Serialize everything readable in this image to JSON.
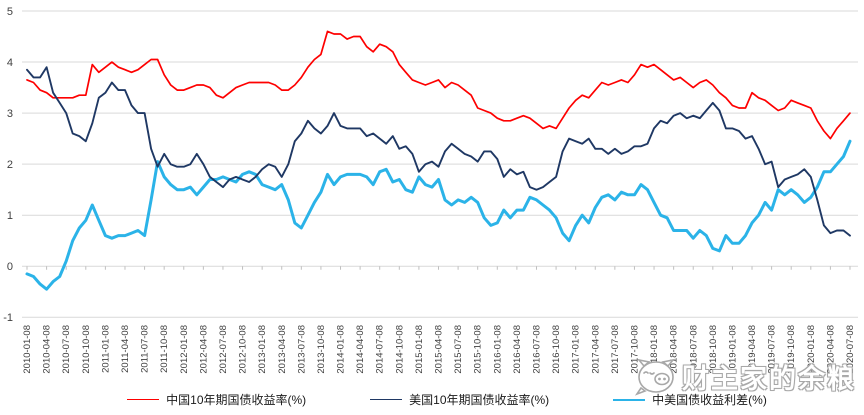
{
  "chart_data": {
    "type": "line",
    "title": "",
    "xlabel": "",
    "ylabel": "",
    "grid": true,
    "legend_position": "bottom",
    "background": "#ffffff",
    "gridline_color": "#d9d9d9",
    "axis_tick_color": "#bfbfbf",
    "y_axis": {
      "min": -1,
      "max": 5,
      "tick_values": [
        5,
        4,
        3,
        2,
        1,
        0,
        -1
      ]
    },
    "x_axis": {
      "tick_labels": [
        "2010-01-08",
        "2010-04-08",
        "2010-07-08",
        "2010-10-08",
        "2011-01-08",
        "2011-04-08",
        "2011-07-08",
        "2011-10-08",
        "2012-01-08",
        "2012-04-08",
        "2012-07-08",
        "2012-10-08",
        "2013-01-08",
        "2013-04-08",
        "2013-07-08",
        "2013-10-08",
        "2014-01-08",
        "2014-04-08",
        "2014-07-08",
        "2014-10-08",
        "2015-01-08",
        "2015-04-08",
        "2015-07-08",
        "2015-10-08",
        "2016-01-08",
        "2016-04-08",
        "2016-07-08",
        "2016-10-08",
        "2017-01-08",
        "2017-04-08",
        "2017-07-08",
        "2017-10-08",
        "2018-01-08",
        "2018-04-08",
        "2018-07-08",
        "2018-10-08",
        "2019-01-08",
        "2019-04-08",
        "2019-07-08",
        "2019-10-08",
        "2020-01-08",
        "2020-04-08",
        "2020-07-08"
      ],
      "points_per_tick": 3,
      "points_interval": "monthly"
    },
    "series": [
      {
        "name": "中国10年期国债收益率(%)",
        "color": "#fe0000",
        "stroke_width": 1.7,
        "values": [
          3.65,
          3.6,
          3.45,
          3.4,
          3.3,
          3.3,
          3.3,
          3.3,
          3.35,
          3.35,
          3.95,
          3.8,
          3.9,
          4.0,
          3.9,
          3.85,
          3.8,
          3.85,
          3.95,
          4.05,
          4.05,
          3.75,
          3.55,
          3.45,
          3.45,
          3.5,
          3.55,
          3.55,
          3.5,
          3.35,
          3.3,
          3.4,
          3.5,
          3.55,
          3.6,
          3.6,
          3.6,
          3.6,
          3.55,
          3.45,
          3.45,
          3.55,
          3.7,
          3.9,
          4.05,
          4.15,
          4.6,
          4.55,
          4.55,
          4.45,
          4.5,
          4.5,
          4.3,
          4.2,
          4.35,
          4.3,
          4.2,
          3.95,
          3.8,
          3.65,
          3.6,
          3.55,
          3.6,
          3.65,
          3.5,
          3.6,
          3.55,
          3.45,
          3.35,
          3.1,
          3.05,
          3.0,
          2.9,
          2.85,
          2.85,
          2.9,
          2.95,
          2.9,
          2.8,
          2.7,
          2.75,
          2.7,
          2.9,
          3.1,
          3.25,
          3.35,
          3.3,
          3.45,
          3.6,
          3.55,
          3.6,
          3.65,
          3.6,
          3.75,
          3.95,
          3.9,
          3.95,
          3.85,
          3.75,
          3.65,
          3.7,
          3.6,
          3.5,
          3.6,
          3.65,
          3.55,
          3.4,
          3.3,
          3.15,
          3.1,
          3.1,
          3.4,
          3.3,
          3.25,
          3.15,
          3.05,
          3.1,
          3.25,
          3.2,
          3.15,
          3.1,
          2.85,
          2.65,
          2.5,
          2.7,
          2.85,
          3.0
        ]
      },
      {
        "name": "美国10年期国债收益率(%)",
        "color": "#1f3864",
        "stroke_width": 1.9,
        "values": [
          3.85,
          3.7,
          3.7,
          3.9,
          3.4,
          3.2,
          3.0,
          2.6,
          2.55,
          2.45,
          2.8,
          3.3,
          3.4,
          3.6,
          3.45,
          3.45,
          3.15,
          3.0,
          3.0,
          2.3,
          1.95,
          2.2,
          2.0,
          1.95,
          1.95,
          2.0,
          2.2,
          2.0,
          1.75,
          1.65,
          1.55,
          1.7,
          1.75,
          1.7,
          1.65,
          1.75,
          1.9,
          2.0,
          1.95,
          1.75,
          2.0,
          2.45,
          2.6,
          2.85,
          2.7,
          2.6,
          2.75,
          3.0,
          2.75,
          2.7,
          2.7,
          2.7,
          2.55,
          2.6,
          2.5,
          2.4,
          2.55,
          2.3,
          2.35,
          2.2,
          1.85,
          2.0,
          2.05,
          1.95,
          2.25,
          2.4,
          2.3,
          2.2,
          2.15,
          2.05,
          2.25,
          2.25,
          2.1,
          1.75,
          1.9,
          1.8,
          1.85,
          1.55,
          1.5,
          1.55,
          1.65,
          1.75,
          2.25,
          2.5,
          2.45,
          2.4,
          2.5,
          2.3,
          2.3,
          2.2,
          2.3,
          2.2,
          2.25,
          2.35,
          2.35,
          2.4,
          2.7,
          2.85,
          2.8,
          2.95,
          3.0,
          2.9,
          2.95,
          2.9,
          3.05,
          3.2,
          3.05,
          2.7,
          2.7,
          2.65,
          2.5,
          2.55,
          2.3,
          2.0,
          2.05,
          1.55,
          1.7,
          1.75,
          1.8,
          1.9,
          1.75,
          1.3,
          0.8,
          0.65,
          0.7,
          0.7,
          0.6
        ]
      },
      {
        "name": "中美国债收益利差(%)",
        "color": "#2bb3e8",
        "stroke_width": 3,
        "values": [
          -0.15,
          -0.2,
          -0.35,
          -0.45,
          -0.3,
          -0.2,
          0.1,
          0.5,
          0.75,
          0.9,
          1.2,
          0.9,
          0.6,
          0.55,
          0.6,
          0.6,
          0.65,
          0.7,
          0.6,
          1.3,
          2.05,
          1.75,
          1.6,
          1.5,
          1.5,
          1.55,
          1.4,
          1.55,
          1.7,
          1.7,
          1.75,
          1.7,
          1.65,
          1.8,
          1.85,
          1.8,
          1.6,
          1.55,
          1.5,
          1.6,
          1.3,
          0.85,
          0.75,
          1.0,
          1.25,
          1.45,
          1.8,
          1.6,
          1.75,
          1.8,
          1.8,
          1.8,
          1.75,
          1.6,
          1.85,
          1.9,
          1.65,
          1.7,
          1.5,
          1.45,
          1.75,
          1.6,
          1.55,
          1.7,
          1.3,
          1.2,
          1.3,
          1.25,
          1.35,
          1.25,
          0.95,
          0.8,
          0.85,
          1.1,
          0.95,
          1.1,
          1.1,
          1.35,
          1.3,
          1.2,
          1.1,
          0.95,
          0.65,
          0.5,
          0.8,
          1.0,
          0.85,
          1.15,
          1.35,
          1.4,
          1.3,
          1.45,
          1.4,
          1.4,
          1.6,
          1.5,
          1.25,
          1.0,
          0.95,
          0.7,
          0.7,
          0.7,
          0.55,
          0.7,
          0.6,
          0.35,
          0.3,
          0.6,
          0.45,
          0.45,
          0.6,
          0.85,
          1.0,
          1.25,
          1.1,
          1.5,
          1.4,
          1.5,
          1.4,
          1.25,
          1.35,
          1.55,
          1.85,
          1.85,
          2.0,
          2.15,
          2.45
        ]
      }
    ],
    "draw_order": [
      0,
      2,
      1
    ]
  },
  "watermark": {
    "text": "财主家的余粮",
    "icon": "pig-face-icon"
  }
}
